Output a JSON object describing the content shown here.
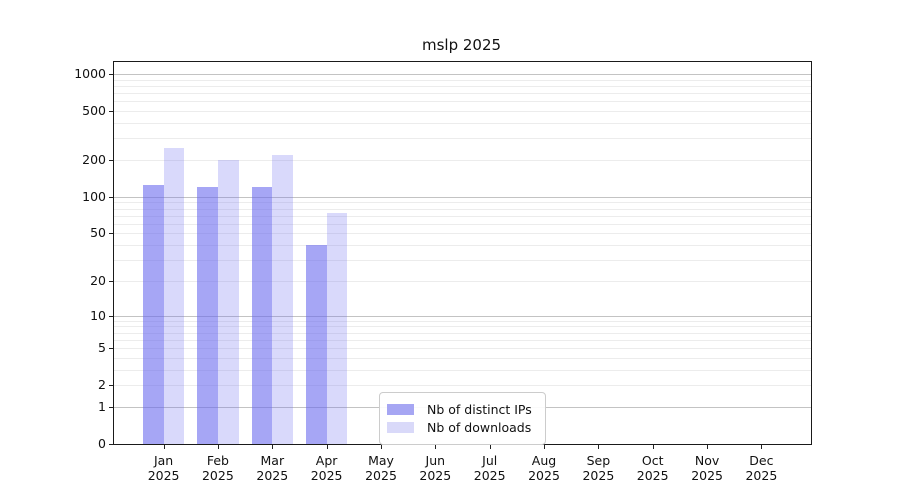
{
  "chart_data": {
    "type": "bar",
    "title": "mslp 2025",
    "x_categories": [
      "Jan",
      "Feb",
      "Mar",
      "Apr",
      "May",
      "Jun",
      "Jul",
      "Aug",
      "Sep",
      "Oct",
      "Nov",
      "Dec"
    ],
    "x_year": "2025",
    "series": [
      {
        "name": "Nb of distinct IPs",
        "color": "rgba(102,102,238,0.58)",
        "swatch_hex": "#a6a6f3",
        "values": [
          125,
          120,
          120,
          40,
          0,
          0,
          0,
          0,
          0,
          0,
          0,
          0
        ]
      },
      {
        "name": "Nb of downloads",
        "color": "rgba(102,102,238,0.25)",
        "swatch_hex": "#d9d9f9",
        "values": [
          250,
          200,
          220,
          74,
          0,
          0,
          0,
          0,
          0,
          0,
          0,
          0
        ]
      }
    ],
    "y_axis": {
      "scale": "log10(1+y)",
      "ticks": [
        0,
        1,
        2,
        5,
        10,
        20,
        50,
        100,
        200,
        500,
        1000
      ],
      "top_value": 1250
    },
    "grid": {
      "major_decades": [
        1,
        10,
        100,
        1000
      ],
      "major_color": "#c3c3c3",
      "minor_color": "#ececec"
    },
    "legend": {
      "position": "inside-lower-center"
    }
  }
}
